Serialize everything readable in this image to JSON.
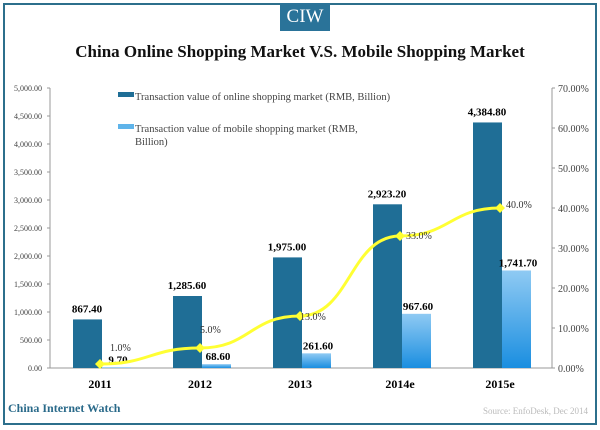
{
  "header": {
    "logo": "CIW",
    "brand": "China Internet Watch",
    "source": "Source: EnfoDesk, Dec 2014"
  },
  "chart_data": {
    "type": "bar",
    "title": "China Online Shopping Market V.S. Mobile Shopping Market",
    "categories": [
      "2011",
      "2012",
      "2013",
      "2014e",
      "2015e"
    ],
    "series": [
      {
        "name": "Transaction value of online shopping market (RMB, Billion)",
        "values": [
          867.4,
          1285.6,
          1975.0,
          2923.2,
          4384.8
        ],
        "labels": [
          "867.40",
          "1,285.60",
          "1,975.00",
          "2,923.20",
          "4,384.80"
        ],
        "color": "#1f6e96",
        "axis": "left"
      },
      {
        "name": "Transaction value of mobile shopping market (RMB, Billion)",
        "values": [
          9.7,
          68.6,
          261.6,
          967.6,
          1741.7
        ],
        "labels": [
          "9.70",
          "68.60",
          "261.60",
          "967.60",
          "1,741.70"
        ],
        "color": "#4aa8e6",
        "axis": "left"
      },
      {
        "type": "line",
        "values": [
          1.0,
          5.0,
          13.0,
          33.0,
          40.0
        ],
        "labels": [
          "1.0%",
          "5.0%",
          "13.0%",
          "33.0%",
          "40.0%"
        ],
        "color": "#ffff33",
        "axis": "right"
      }
    ],
    "left_axis": {
      "ylim": [
        0,
        5000
      ],
      "ticks": [
        "0.00",
        "500.00",
        "1,000.00",
        "1,500.00",
        "2,000.00",
        "2,500.00",
        "3,000.00",
        "3,500.00",
        "4,000.00",
        "4,500.00",
        "5,000.00"
      ]
    },
    "right_axis": {
      "ylim": [
        0,
        70
      ],
      "ticks": [
        "0.00%",
        "10.00%",
        "20.00%",
        "30.00%",
        "40.00%",
        "50.00%",
        "60.00%",
        "70.00%"
      ]
    },
    "legend": "top-center",
    "grid": false
  }
}
